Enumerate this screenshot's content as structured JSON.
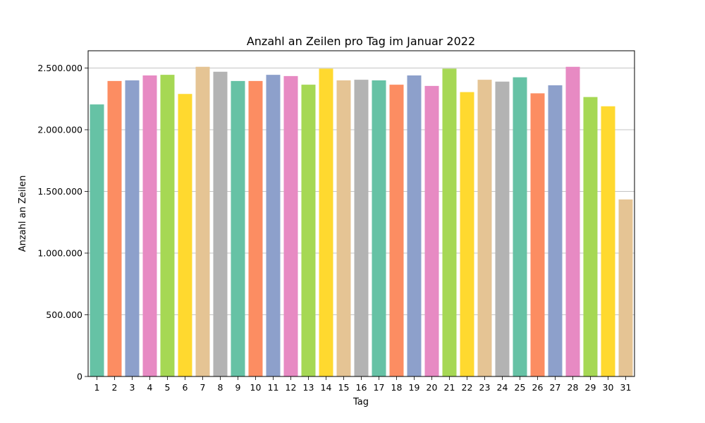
{
  "chart_data": {
    "type": "bar",
    "title": "Anzahl an Zeilen pro Tag im Januar 2022",
    "xlabel": "Tag",
    "ylabel": "Anzahl an Zeilen",
    "ylim": [
      0,
      2640000
    ],
    "grid": "horizontal",
    "yticks": [
      0,
      500000,
      1000000,
      1500000,
      2000000,
      2500000
    ],
    "ytick_labels": [
      "0",
      "500.000",
      "1.000.000",
      "1.500.000",
      "2.000.000",
      "2.500.000"
    ],
    "categories": [
      "1",
      "2",
      "3",
      "4",
      "5",
      "6",
      "7",
      "8",
      "9",
      "10",
      "11",
      "12",
      "13",
      "14",
      "15",
      "16",
      "17",
      "18",
      "19",
      "20",
      "21",
      "22",
      "23",
      "24",
      "25",
      "26",
      "27",
      "28",
      "29",
      "30",
      "31"
    ],
    "values": [
      2205000,
      2395000,
      2400000,
      2440000,
      2445000,
      2290000,
      2510000,
      2470000,
      2395000,
      2395000,
      2445000,
      2435000,
      2365000,
      2495000,
      2400000,
      2405000,
      2400000,
      2365000,
      2440000,
      2355000,
      2495000,
      2305000,
      2405000,
      2390000,
      2425000,
      2295000,
      2360000,
      2510000,
      2265000,
      2190000,
      1435000
    ],
    "colors": [
      "#66c2a5",
      "#fc8d62",
      "#8da0cb",
      "#e78ac3",
      "#a6d854",
      "#ffd92f",
      "#e5c494",
      "#b3b3b3"
    ]
  }
}
